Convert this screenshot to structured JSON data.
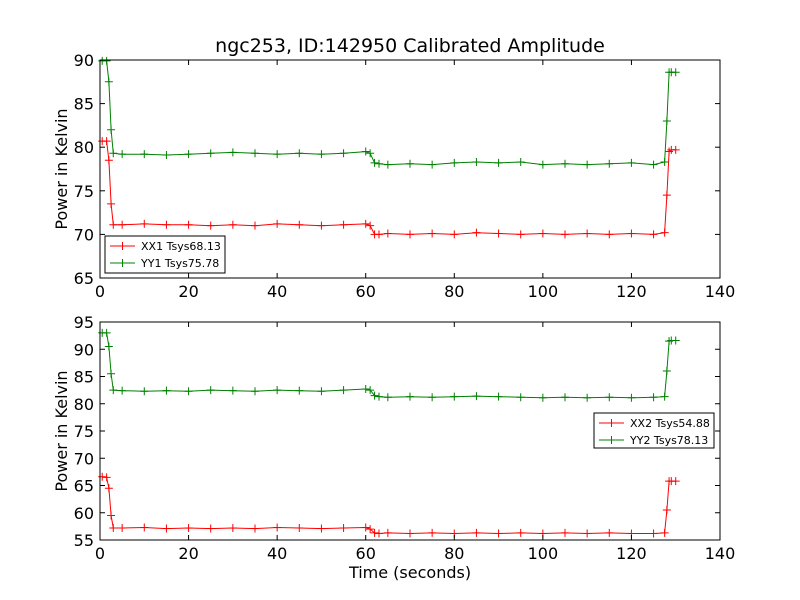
{
  "figure": {
    "title": "ngc253, ID:142950 Calibrated Amplitude",
    "xlabel": "Time (seconds)"
  },
  "colors": {
    "xx": "#ff0000",
    "yy": "#008000",
    "axes": "#000000",
    "background": "#ffffff"
  },
  "chart_data": [
    {
      "type": "line",
      "title": "ngc253, ID:142950 Calibrated Amplitude",
      "xlabel": "",
      "ylabel": "Power in Kelvin",
      "xlim": [
        0,
        140
      ],
      "ylim": [
        65,
        90
      ],
      "xticks": [
        0,
        20,
        40,
        60,
        80,
        100,
        120,
        140
      ],
      "yticks": [
        65,
        70,
        75,
        80,
        85,
        90
      ],
      "grid": false,
      "legend_position": "bottom-left",
      "marker": "plus",
      "series": [
        {
          "name": "XX1 Tsys68.13",
          "color": "#ff0000",
          "x": [
            0.5,
            1.5,
            2,
            2.5,
            3,
            5,
            10,
            15,
            20,
            25,
            30,
            35,
            40,
            45,
            50,
            55,
            60,
            61,
            62,
            63,
            65,
            70,
            75,
            80,
            85,
            90,
            95,
            100,
            105,
            110,
            115,
            120,
            125,
            127.5,
            128,
            128.5,
            129,
            130
          ],
          "y": [
            80.7,
            80.7,
            78.5,
            73.5,
            71.1,
            71.1,
            71.2,
            71.1,
            71.1,
            71.0,
            71.1,
            71.0,
            71.2,
            71.1,
            71.0,
            71.1,
            71.2,
            71.0,
            70.0,
            70.0,
            70.1,
            70.0,
            70.1,
            70.0,
            70.2,
            70.1,
            70.0,
            70.1,
            70.0,
            70.1,
            70.0,
            70.1,
            70.0,
            70.2,
            74.5,
            79.5,
            79.7,
            79.7
          ]
        },
        {
          "name": "YY1 Tsys75.78",
          "color": "#008000",
          "x": [
            0.5,
            1.5,
            2,
            2.5,
            3,
            5,
            10,
            15,
            20,
            25,
            30,
            35,
            40,
            45,
            50,
            55,
            60,
            61,
            62,
            63,
            65,
            70,
            75,
            80,
            85,
            90,
            95,
            100,
            105,
            110,
            115,
            120,
            125,
            127.5,
            128,
            128.5,
            129,
            130
          ],
          "y": [
            89.9,
            89.9,
            87.5,
            82.0,
            79.3,
            79.2,
            79.2,
            79.1,
            79.2,
            79.3,
            79.4,
            79.3,
            79.2,
            79.3,
            79.2,
            79.3,
            79.5,
            79.3,
            78.2,
            78.1,
            78.0,
            78.1,
            78.0,
            78.2,
            78.3,
            78.2,
            78.3,
            78.0,
            78.1,
            78.0,
            78.1,
            78.2,
            78.0,
            78.3,
            83.0,
            88.6,
            88.6,
            88.6
          ]
        }
      ]
    },
    {
      "type": "line",
      "xlabel": "Time (seconds)",
      "ylabel": "Power in Kelvin",
      "xlim": [
        0,
        140
      ],
      "ylim": [
        55,
        95
      ],
      "xticks": [
        0,
        20,
        40,
        60,
        80,
        100,
        120,
        140
      ],
      "yticks": [
        55,
        60,
        65,
        70,
        75,
        80,
        85,
        90,
        95
      ],
      "grid": false,
      "legend_position": "right",
      "marker": "plus",
      "series": [
        {
          "name": "XX2 Tsys54.88",
          "color": "#ff0000",
          "x": [
            0.5,
            1.5,
            2,
            2.5,
            3,
            5,
            10,
            15,
            20,
            25,
            30,
            35,
            40,
            45,
            50,
            55,
            60,
            61,
            62,
            63,
            65,
            70,
            75,
            80,
            85,
            90,
            95,
            100,
            105,
            110,
            115,
            120,
            125,
            127.5,
            128,
            128.5,
            129,
            130
          ],
          "y": [
            66.6,
            66.5,
            64.5,
            59.5,
            57.2,
            57.2,
            57.3,
            57.1,
            57.2,
            57.1,
            57.2,
            57.1,
            57.3,
            57.2,
            57.1,
            57.2,
            57.3,
            57.0,
            56.3,
            56.2,
            56.3,
            56.2,
            56.3,
            56.2,
            56.3,
            56.2,
            56.3,
            56.2,
            56.3,
            56.2,
            56.3,
            56.2,
            56.2,
            56.3,
            60.5,
            65.8,
            65.8,
            65.8
          ]
        },
        {
          "name": "YY2 Tsys78.13",
          "color": "#008000",
          "x": [
            0.5,
            1.5,
            2,
            2.5,
            3,
            5,
            10,
            15,
            20,
            25,
            30,
            35,
            40,
            45,
            50,
            55,
            60,
            61,
            62,
            63,
            65,
            70,
            75,
            80,
            85,
            90,
            95,
            100,
            105,
            110,
            115,
            120,
            125,
            127.5,
            128,
            128.5,
            129,
            130
          ],
          "y": [
            93.0,
            93.0,
            90.5,
            85.5,
            82.5,
            82.4,
            82.3,
            82.4,
            82.3,
            82.5,
            82.4,
            82.3,
            82.5,
            82.4,
            82.3,
            82.5,
            82.7,
            82.5,
            81.5,
            81.3,
            81.2,
            81.3,
            81.2,
            81.3,
            81.4,
            81.3,
            81.2,
            81.1,
            81.2,
            81.1,
            81.2,
            81.1,
            81.2,
            81.3,
            86.0,
            91.5,
            91.6,
            91.6
          ]
        }
      ]
    }
  ]
}
